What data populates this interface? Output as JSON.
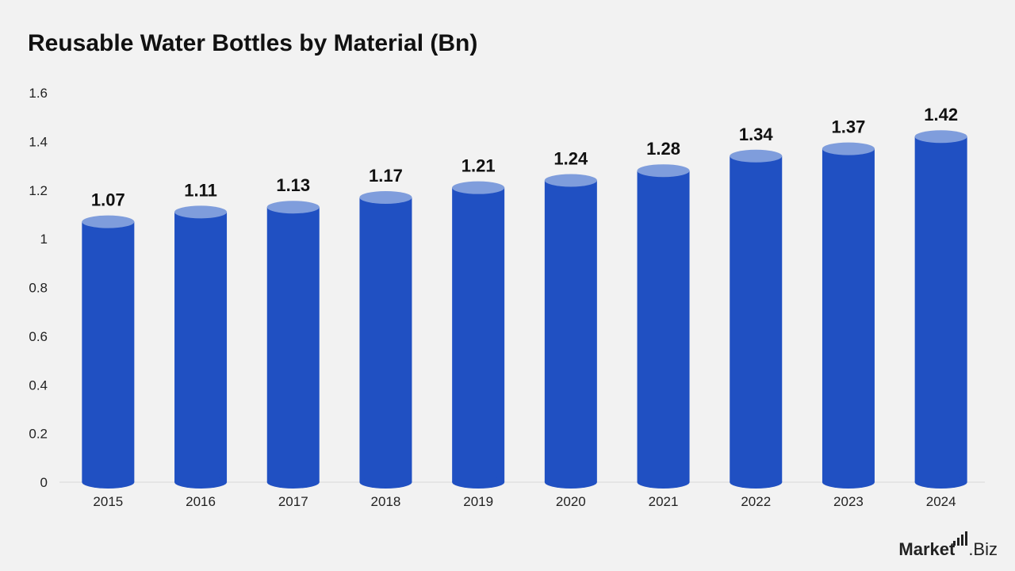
{
  "title": "Reusable Water Bottles by Material (Bn)",
  "brand": {
    "name_bold": "Market",
    "name_rest": ".Biz"
  },
  "colors": {
    "bar": "#2050c2",
    "bar_top": "#7f9ddc",
    "background": "#f2f2f2"
  },
  "chart_data": {
    "type": "bar",
    "title": "Reusable Water Bottles by Material (Bn)",
    "categories": [
      "2015",
      "2016",
      "2017",
      "2018",
      "2019",
      "2020",
      "2021",
      "2022",
      "2023",
      "2024"
    ],
    "values": [
      1.07,
      1.11,
      1.13,
      1.17,
      1.21,
      1.24,
      1.28,
      1.34,
      1.37,
      1.42
    ],
    "value_labels": [
      "1.07",
      "1.11",
      "1.13",
      "1.17",
      "1.21",
      "1.24",
      "1.28",
      "1.34",
      "1.37",
      "1.42"
    ],
    "yticks": [
      "0",
      "0.2",
      "0.4",
      "0.6",
      "0.8",
      "1",
      "1.2",
      "1.4",
      "1.6"
    ],
    "ylim": [
      0,
      1.6
    ],
    "xlabel": "",
    "ylabel": "",
    "grid": false,
    "legend": "none"
  }
}
